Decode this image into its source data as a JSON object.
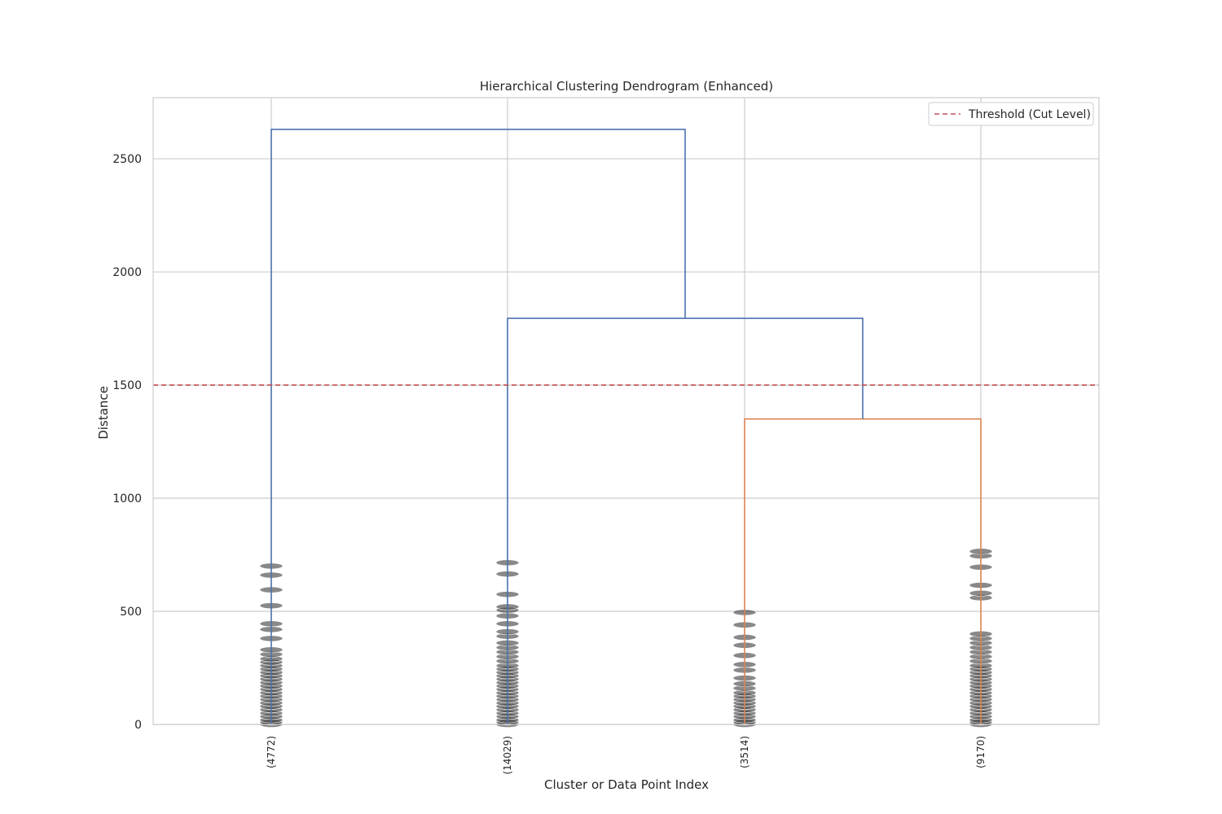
{
  "chart_data": {
    "type": "dendrogram",
    "title": "Hierarchical Clustering Dendrogram (Enhanced)",
    "xlabel": "Cluster or Data Point Index",
    "ylabel": "Distance",
    "ylim": [
      0,
      2770
    ],
    "yticks": [
      0,
      500,
      1000,
      1500,
      2000,
      2500
    ],
    "grid": true,
    "legend": {
      "placement": "top-right",
      "entries": [
        "Threshold (Cut Level)"
      ]
    },
    "leaves": [
      "(4772)",
      "(14029)",
      "(3514)",
      "(9170)"
    ],
    "threshold": {
      "label": "Threshold (Cut Level)",
      "value": 1500,
      "color": "#c44e52"
    },
    "colors": {
      "above_threshold": "#4c72b0",
      "cluster": "#dd8452",
      "points": "#3a3a3a",
      "grid": "#cccccc"
    },
    "links": [
      {
        "left": 2,
        "right": 3,
        "height": 1350,
        "color": "cluster"
      },
      {
        "left": 1,
        "right": "2+3",
        "height": 1795,
        "color": "above_threshold"
      },
      {
        "left": 0,
        "right": "1+2+3",
        "height": 2630,
        "color": "above_threshold"
      }
    ],
    "leaf_point_distances": [
      [
        0,
        10,
        20,
        35,
        50,
        65,
        80,
        95,
        110,
        125,
        140,
        155,
        170,
        185,
        200,
        215,
        230,
        245,
        260,
        275,
        290,
        310,
        330,
        380,
        420,
        445,
        525,
        595,
        660,
        700
      ],
      [
        0,
        10,
        20,
        35,
        50,
        65,
        80,
        95,
        110,
        125,
        140,
        155,
        170,
        185,
        200,
        215,
        230,
        245,
        260,
        280,
        300,
        320,
        340,
        360,
        390,
        410,
        445,
        480,
        505,
        520,
        575,
        665,
        715
      ],
      [
        0,
        10,
        20,
        35,
        50,
        65,
        80,
        95,
        110,
        125,
        140,
        160,
        180,
        205,
        240,
        265,
        305,
        350,
        385,
        440,
        495
      ],
      [
        0,
        10,
        20,
        35,
        50,
        65,
        80,
        95,
        110,
        125,
        140,
        155,
        170,
        185,
        200,
        215,
        230,
        245,
        260,
        280,
        300,
        320,
        340,
        360,
        380,
        400,
        560,
        580,
        615,
        695,
        745,
        765
      ]
    ]
  }
}
